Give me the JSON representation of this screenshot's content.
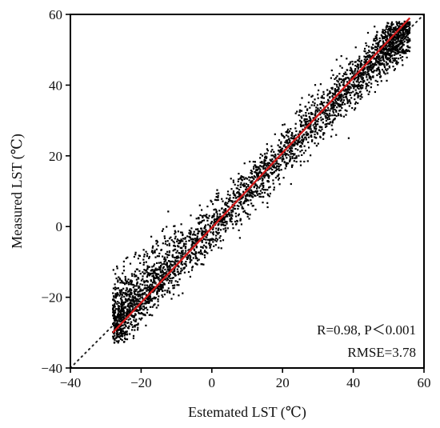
{
  "chart_data": {
    "type": "scatter",
    "title": "",
    "xlabel": "Estemated LST (℃)",
    "ylabel": "Measured  LST (℃)",
    "xlim": [
      -40,
      60
    ],
    "ylim": [
      -40,
      60
    ],
    "xticks": [
      "−40",
      "−20",
      "0",
      "20",
      "40",
      "60"
    ],
    "yticks": [
      "−40",
      "−20",
      "0",
      "20",
      "40",
      "60"
    ],
    "xtick_values": [
      -40,
      -20,
      0,
      20,
      40,
      60
    ],
    "ytick_values": [
      -40,
      -20,
      0,
      20,
      40,
      60
    ],
    "grid": false,
    "legend": "none",
    "point_color": "#000000",
    "fit_color": "#d11a1a",
    "points_summary": {
      "count": 3500,
      "x_range": [
        -28,
        56
      ],
      "relation": "y ≈ x with noise, RMSE 3.78"
    },
    "fit_line": {
      "type": "regression",
      "x": [
        -28,
        56
      ],
      "y": [
        -30,
        59
      ]
    },
    "reference_line": {
      "type": "1:1",
      "x": [
        -40,
        60
      ],
      "y": [
        -40,
        60
      ],
      "style": "dotted"
    },
    "annotations": [
      "R=0.98, P＜0.001",
      "RMSE=3.78"
    ]
  }
}
